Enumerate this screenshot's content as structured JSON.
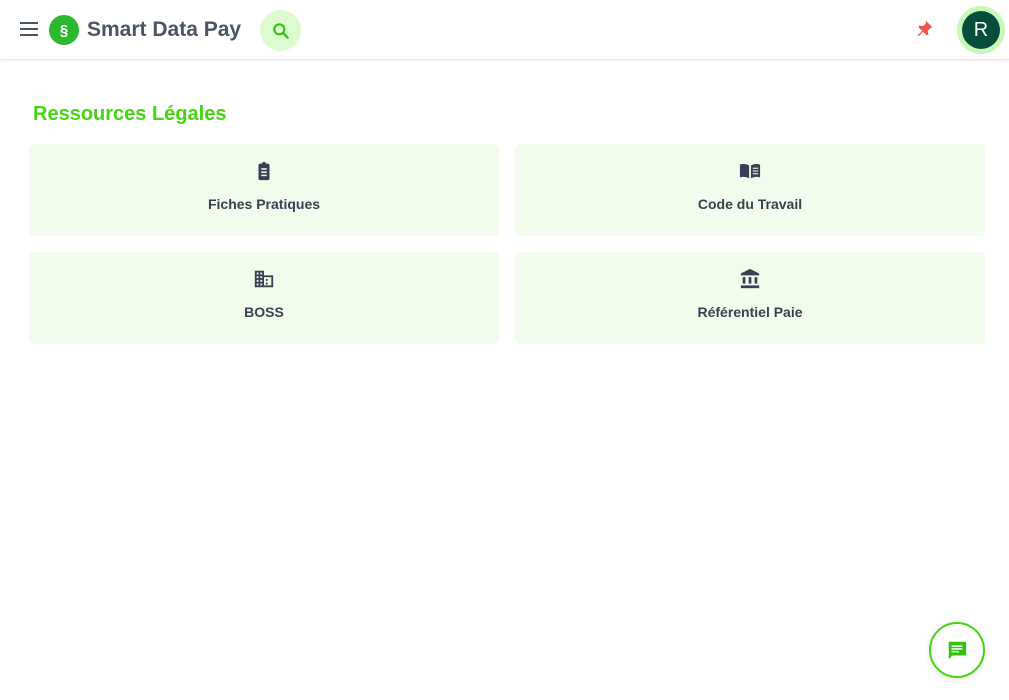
{
  "header": {
    "app_title": "Smart Data Pay",
    "logo_glyph": "§",
    "avatar_initial": "R"
  },
  "section": {
    "title": "Ressources Légales"
  },
  "cards": [
    {
      "label": "Fiches Pratiques",
      "icon": "clipboard-icon"
    },
    {
      "label": "Code du Travail",
      "icon": "book-icon"
    },
    {
      "label": "BOSS",
      "icon": "building-icon"
    },
    {
      "label": "Référentiel Paie",
      "icon": "bank-icon"
    }
  ],
  "colors": {
    "accent": "#44d610",
    "card_bg": "#f1fcec",
    "avatar": "#064e3b",
    "pin": "#ef4444"
  }
}
